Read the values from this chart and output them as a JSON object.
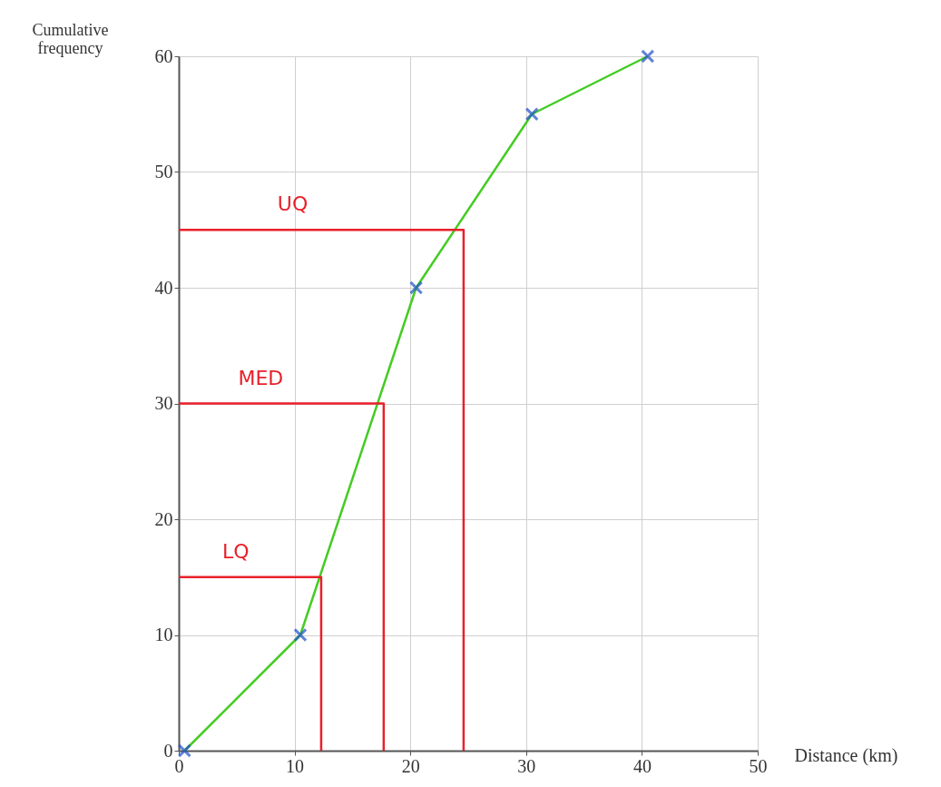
{
  "chart_data": {
    "type": "line",
    "xlabel": "Distance (km)",
    "ylabel": "Cumulative frequency",
    "xlim": [
      0,
      50
    ],
    "xticks": [
      0,
      10,
      20,
      30,
      40,
      50
    ],
    "ylim": [
      0,
      60
    ],
    "yticks": [
      0,
      10,
      20,
      30,
      40,
      50,
      60
    ],
    "grid": true,
    "series": [
      {
        "type": "line",
        "color": "#44cc22",
        "x": [
          0.5,
          10.5,
          20.5,
          30.5,
          40.5
        ],
        "values": [
          0,
          10,
          40,
          55,
          60
        ],
        "marker": "none"
      },
      {
        "type": "scatter",
        "color": "#1f4fc8",
        "x": [
          0.5,
          10.5,
          20.5,
          30.5,
          40.5
        ],
        "values": [
          0,
          10,
          40,
          55,
          60
        ],
        "marker": "cross"
      },
      {
        "type": "line",
        "color": "#e8202a",
        "x": [
          0,
          24.6,
          24.6
        ],
        "values": [
          45,
          45,
          0
        ],
        "marker": "none"
      },
      {
        "type": "line",
        "color": "#e8202a",
        "x": [
          0,
          17.7,
          17.7
        ],
        "values": [
          30,
          30,
          0
        ],
        "marker": "none"
      },
      {
        "type": "line",
        "color": "#e8202a",
        "x": [
          0,
          12.3,
          12.3
        ],
        "values": [
          15,
          15,
          0
        ],
        "marker": "none"
      }
    ],
    "annotations": [
      "UQ",
      "MED",
      "LQ"
    ]
  }
}
